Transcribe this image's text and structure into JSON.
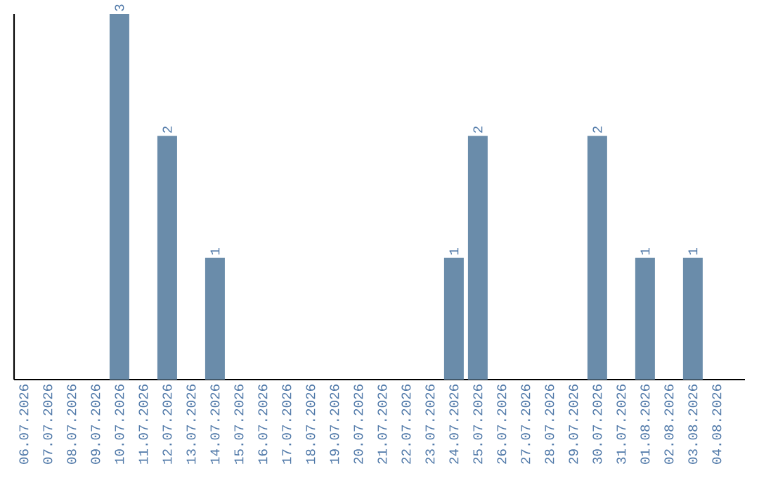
{
  "chart_data": {
    "type": "bar",
    "categories": [
      "06.07.2026",
      "07.07.2026",
      "08.07.2026",
      "09.07.2026",
      "10.07.2026",
      "11.07.2026",
      "12.07.2026",
      "13.07.2026",
      "14.07.2026",
      "15.07.2026",
      "16.07.2026",
      "17.07.2026",
      "18.07.2026",
      "19.07.2026",
      "20.07.2026",
      "21.07.2026",
      "22.07.2026",
      "23.07.2026",
      "24.07.2026",
      "25.07.2026",
      "26.07.2026",
      "27.07.2026",
      "28.07.2026",
      "29.07.2026",
      "30.07.2026",
      "31.07.2026",
      "01.08.2026",
      "02.08.2026",
      "03.08.2026",
      "04.08.2026"
    ],
    "values": [
      0,
      0,
      0,
      0,
      3,
      0,
      2,
      0,
      1,
      0,
      0,
      0,
      0,
      0,
      0,
      0,
      0,
      0,
      1,
      2,
      0,
      0,
      0,
      0,
      2,
      0,
      1,
      0,
      1,
      0
    ],
    "value_labels": [
      null,
      null,
      null,
      null,
      "3",
      null,
      "2",
      null,
      "1",
      null,
      null,
      null,
      null,
      null,
      null,
      null,
      null,
      null,
      "1",
      "2",
      null,
      null,
      null,
      null,
      "2",
      null,
      "1",
      null,
      "1",
      null
    ],
    "color": "#6a8caa"
  }
}
